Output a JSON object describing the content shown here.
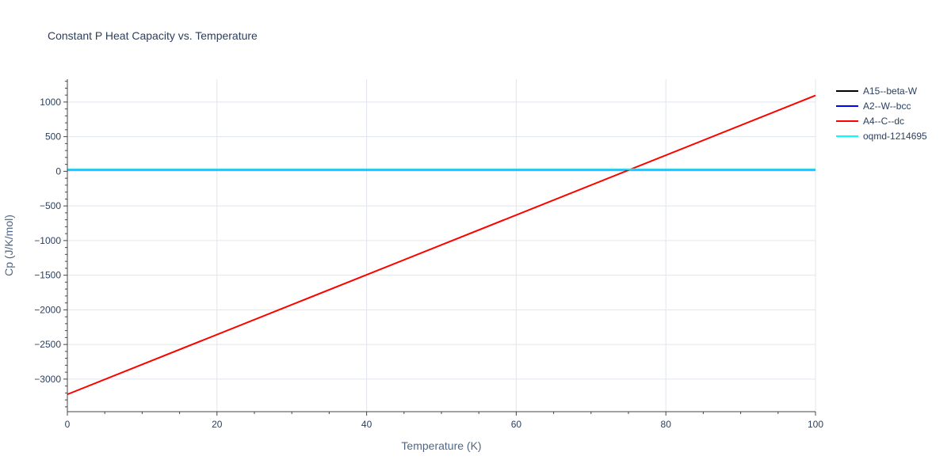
{
  "chart_data": {
    "type": "line",
    "title": "Constant P Heat Capacity vs. Temperature",
    "xlabel": "Temperature (K)",
    "ylabel": "Cp (J/K/mol)",
    "xlim": [
      0,
      100
    ],
    "ylim": [
      -3470,
      1330
    ],
    "x_ticks": [
      0,
      20,
      40,
      60,
      80,
      100
    ],
    "x_tick_labels": [
      "0",
      "20",
      "40",
      "60",
      "80",
      "100"
    ],
    "y_ticks": [
      -3000,
      -2500,
      -2000,
      -1500,
      -1000,
      -500,
      0,
      500,
      1000
    ],
    "y_tick_labels": [
      "−3000",
      "−2500",
      "−2000",
      "−1500",
      "−1000",
      "−500",
      "0",
      "500",
      "1000"
    ],
    "grid": true,
    "legend_position": "top-right",
    "series": [
      {
        "name": "A15--beta-W",
        "color": "#000000",
        "x": [
          0,
          100
        ],
        "y": [
          25,
          25
        ]
      },
      {
        "name": "A2--W--bcc",
        "color": "#0000ff",
        "x": [
          0,
          100
        ],
        "y": [
          25,
          25
        ]
      },
      {
        "name": "A4--C--dc",
        "color": "#ff0000",
        "x": [
          0,
          100
        ],
        "y": [
          -3220,
          1095
        ]
      },
      {
        "name": "oqmd-1214695",
        "color": "#00ffff",
        "x": [
          0,
          100
        ],
        "y": [
          30,
          30
        ]
      }
    ]
  }
}
